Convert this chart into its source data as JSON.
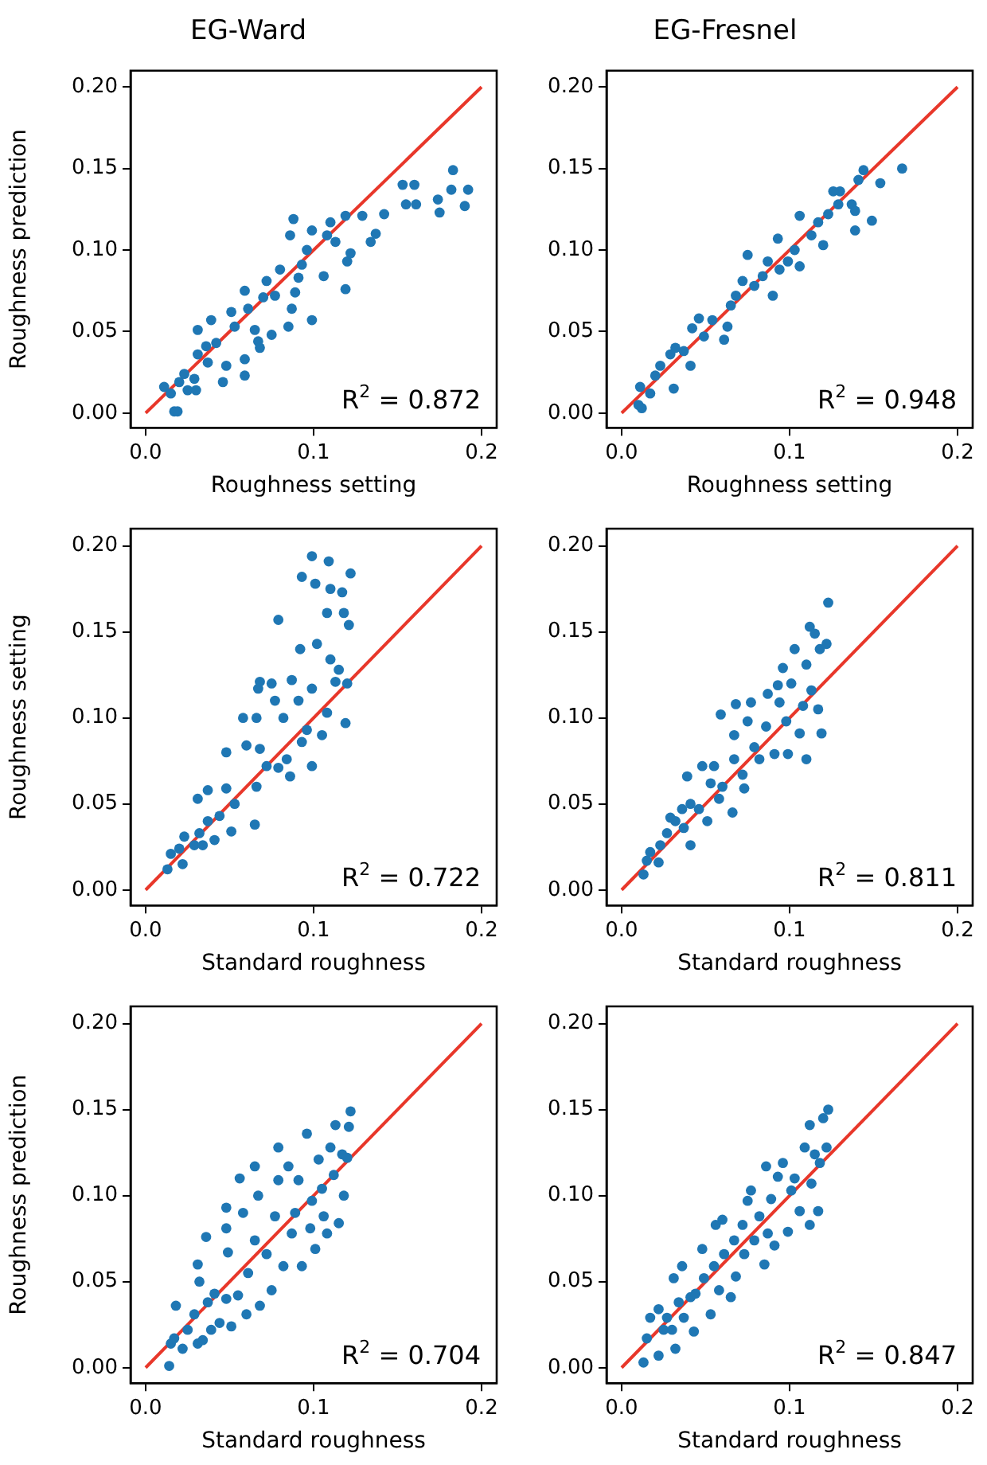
{
  "chart_data": [
    {
      "type": "scatter",
      "title": "EG-Ward",
      "xlabel": "Roughness setting",
      "ylabel": "Roughness prediction",
      "xlim": [
        -0.009,
        0.209
      ],
      "ylim": [
        -0.009,
        0.21
      ],
      "xticks": [
        {
          "value": 0,
          "label": "0.0"
        },
        {
          "value": 0.1,
          "label": "0.1"
        },
        {
          "value": 0.2,
          "label": "0.2"
        }
      ],
      "yticks": [
        {
          "value": 0,
          "label": "0.00"
        },
        {
          "value": 0.05,
          "label": "0.05"
        },
        {
          "value": 0.1,
          "label": "0.10"
        },
        {
          "value": 0.15,
          "label": "0.15"
        },
        {
          "value": 0.2,
          "label": "0.20"
        }
      ],
      "grid": false,
      "legend": false,
      "annotations": [
        "R$^{2}$ = 0.872"
      ],
      "series": [
        {
          "marker": "circle",
          "color": "#1f77b4",
          "x": [
            0.011,
            0.017,
            0.019,
            0.015,
            0.02,
            0.023,
            0.025,
            0.03,
            0.029,
            0.031,
            0.031,
            0.036,
            0.037,
            0.039,
            0.042,
            0.046,
            0.048,
            0.051,
            0.053,
            0.059,
            0.059,
            0.059,
            0.061,
            0.065,
            0.067,
            0.068,
            0.07,
            0.072,
            0.075,
            0.077,
            0.08,
            0.085,
            0.087,
            0.088,
            0.086,
            0.089,
            0.091,
            0.093,
            0.099,
            0.096,
            0.099,
            0.106,
            0.108,
            0.11,
            0.113,
            0.119,
            0.119,
            0.12,
            0.122,
            0.129,
            0.134,
            0.137,
            0.142,
            0.153,
            0.155,
            0.16,
            0.161,
            0.174,
            0.175,
            0.183,
            0.182,
            0.192,
            0.19
          ],
          "values": [
            0.016,
            0.001,
            0.001,
            0.012,
            0.019,
            0.024,
            0.014,
            0.014,
            0.021,
            0.036,
            0.051,
            0.041,
            0.031,
            0.057,
            0.043,
            0.019,
            0.029,
            0.062,
            0.053,
            0.023,
            0.033,
            0.075,
            0.064,
            0.051,
            0.044,
            0.04,
            0.071,
            0.081,
            0.048,
            0.072,
            0.088,
            0.053,
            0.064,
            0.119,
            0.109,
            0.074,
            0.083,
            0.091,
            0.057,
            0.1,
            0.112,
            0.084,
            0.109,
            0.117,
            0.105,
            0.076,
            0.121,
            0.093,
            0.098,
            0.121,
            0.105,
            0.11,
            0.122,
            0.14,
            0.128,
            0.14,
            0.128,
            0.131,
            0.123,
            0.149,
            0.137,
            0.137,
            0.127
          ]
        },
        {
          "type": "line",
          "color": "#e8372a",
          "x": [
            0,
            0.2
          ],
          "values": [
            0,
            0.2
          ]
        }
      ]
    },
    {
      "type": "scatter",
      "title": "EG-Fresnel",
      "xlabel": "Roughness setting",
      "xlim": [
        -0.009,
        0.209
      ],
      "ylim": [
        -0.009,
        0.21
      ],
      "xticks": [
        {
          "value": 0,
          "label": "0.0"
        },
        {
          "value": 0.1,
          "label": "0.1"
        },
        {
          "value": 0.2,
          "label": "0.2"
        }
      ],
      "yticks": [
        {
          "value": 0,
          "label": "0.00"
        },
        {
          "value": 0.05,
          "label": "0.05"
        },
        {
          "value": 0.1,
          "label": "0.10"
        },
        {
          "value": 0.15,
          "label": "0.15"
        },
        {
          "value": 0.2,
          "label": "0.20"
        }
      ],
      "grid": false,
      "legend": false,
      "annotations": [
        "R$^{2}$ = 0.948"
      ],
      "series": [
        {
          "marker": "circle",
          "color": "#1f77b4",
          "x": [
            0.01,
            0.012,
            0.011,
            0.017,
            0.02,
            0.023,
            0.031,
            0.029,
            0.032,
            0.037,
            0.041,
            0.042,
            0.046,
            0.049,
            0.054,
            0.061,
            0.063,
            0.065,
            0.068,
            0.072,
            0.075,
            0.079,
            0.084,
            0.087,
            0.09,
            0.093,
            0.094,
            0.099,
            0.103,
            0.106,
            0.106,
            0.113,
            0.117,
            0.12,
            0.123,
            0.129,
            0.13,
            0.126,
            0.139,
            0.137,
            0.139,
            0.141,
            0.144,
            0.149,
            0.154,
            0.167
          ],
          "values": [
            0.005,
            0.003,
            0.016,
            0.012,
            0.023,
            0.029,
            0.015,
            0.036,
            0.04,
            0.038,
            0.029,
            0.052,
            0.058,
            0.047,
            0.057,
            0.045,
            0.053,
            0.066,
            0.072,
            0.081,
            0.097,
            0.078,
            0.084,
            0.093,
            0.072,
            0.107,
            0.088,
            0.093,
            0.1,
            0.121,
            0.09,
            0.109,
            0.117,
            0.103,
            0.122,
            0.128,
            0.136,
            0.136,
            0.112,
            0.128,
            0.124,
            0.143,
            0.149,
            0.118,
            0.141,
            0.15
          ]
        },
        {
          "type": "line",
          "color": "#e8372a",
          "x": [
            0,
            0.2
          ],
          "values": [
            0,
            0.2
          ]
        }
      ]
    },
    {
      "type": "scatter",
      "xlabel": "Standard roughness",
      "ylabel": "Roughness setting",
      "xlim": [
        -0.009,
        0.209
      ],
      "ylim": [
        -0.009,
        0.21
      ],
      "xticks": [
        {
          "value": 0,
          "label": "0.0"
        },
        {
          "value": 0.1,
          "label": "0.1"
        },
        {
          "value": 0.2,
          "label": "0.2"
        }
      ],
      "yticks": [
        {
          "value": 0,
          "label": "0.00"
        },
        {
          "value": 0.05,
          "label": "0.05"
        },
        {
          "value": 0.1,
          "label": "0.10"
        },
        {
          "value": 0.15,
          "label": "0.15"
        },
        {
          "value": 0.2,
          "label": "0.20"
        }
      ],
      "grid": false,
      "legend": false,
      "annotations": [
        "R$^{2}$ = 0.722"
      ],
      "series": [
        {
          "marker": "circle",
          "color": "#1f77b4",
          "x": [
            0.013,
            0.015,
            0.02,
            0.022,
            0.023,
            0.029,
            0.032,
            0.034,
            0.037,
            0.037,
            0.031,
            0.041,
            0.044,
            0.048,
            0.048,
            0.051,
            0.053,
            0.058,
            0.06,
            0.065,
            0.066,
            0.067,
            0.068,
            0.066,
            0.068,
            0.072,
            0.075,
            0.077,
            0.079,
            0.079,
            0.082,
            0.084,
            0.086,
            0.087,
            0.091,
            0.092,
            0.093,
            0.093,
            0.096,
            0.099,
            0.099,
            0.101,
            0.102,
            0.105,
            0.108,
            0.109,
            0.108,
            0.11,
            0.11,
            0.113,
            0.115,
            0.117,
            0.118,
            0.119,
            0.12,
            0.122,
            0.121,
            0.099
          ],
          "values": [
            0.012,
            0.021,
            0.024,
            0.015,
            0.031,
            0.026,
            0.033,
            0.026,
            0.04,
            0.058,
            0.053,
            0.029,
            0.043,
            0.059,
            0.08,
            0.034,
            0.05,
            0.1,
            0.084,
            0.038,
            0.06,
            0.117,
            0.121,
            0.1,
            0.082,
            0.072,
            0.12,
            0.11,
            0.071,
            0.157,
            0.1,
            0.076,
            0.066,
            0.122,
            0.11,
            0.14,
            0.086,
            0.182,
            0.093,
            0.072,
            0.117,
            0.178,
            0.143,
            0.09,
            0.103,
            0.191,
            0.161,
            0.175,
            0.134,
            0.121,
            0.128,
            0.173,
            0.161,
            0.097,
            0.12,
            0.184,
            0.154,
            0.194
          ]
        },
        {
          "type": "line",
          "color": "#e8372a",
          "x": [
            0,
            0.2
          ],
          "values": [
            0,
            0.2
          ]
        }
      ]
    },
    {
      "type": "scatter",
      "xlabel": "Standard roughness",
      "xlim": [
        -0.009,
        0.209
      ],
      "ylim": [
        -0.009,
        0.21
      ],
      "xticks": [
        {
          "value": 0,
          "label": "0.0"
        },
        {
          "value": 0.1,
          "label": "0.1"
        },
        {
          "value": 0.2,
          "label": "0.2"
        }
      ],
      "yticks": [
        {
          "value": 0,
          "label": "0.00"
        },
        {
          "value": 0.05,
          "label": "0.05"
        },
        {
          "value": 0.1,
          "label": "0.10"
        },
        {
          "value": 0.15,
          "label": "0.15"
        },
        {
          "value": 0.2,
          "label": "0.20"
        }
      ],
      "grid": false,
      "legend": false,
      "annotations": [
        "R$^{2}$ = 0.811"
      ],
      "series": [
        {
          "marker": "circle",
          "color": "#1f77b4",
          "x": [
            0.013,
            0.015,
            0.017,
            0.022,
            0.023,
            0.027,
            0.029,
            0.032,
            0.036,
            0.037,
            0.041,
            0.041,
            0.039,
            0.046,
            0.048,
            0.051,
            0.053,
            0.055,
            0.058,
            0.059,
            0.06,
            0.066,
            0.067,
            0.067,
            0.068,
            0.072,
            0.073,
            0.075,
            0.077,
            0.079,
            0.082,
            0.086,
            0.087,
            0.091,
            0.093,
            0.094,
            0.096,
            0.098,
            0.099,
            0.101,
            0.103,
            0.106,
            0.108,
            0.11,
            0.11,
            0.112,
            0.113,
            0.115,
            0.117,
            0.118,
            0.119,
            0.122,
            0.123
          ],
          "values": [
            0.009,
            0.017,
            0.022,
            0.016,
            0.026,
            0.033,
            0.042,
            0.04,
            0.047,
            0.036,
            0.05,
            0.026,
            0.066,
            0.047,
            0.072,
            0.04,
            0.062,
            0.072,
            0.053,
            0.102,
            0.06,
            0.045,
            0.076,
            0.09,
            0.108,
            0.067,
            0.059,
            0.098,
            0.109,
            0.083,
            0.076,
            0.095,
            0.114,
            0.079,
            0.119,
            0.109,
            0.129,
            0.098,
            0.079,
            0.12,
            0.14,
            0.091,
            0.107,
            0.076,
            0.131,
            0.153,
            0.116,
            0.149,
            0.105,
            0.14,
            0.091,
            0.143,
            0.167
          ]
        },
        {
          "type": "line",
          "color": "#e8372a",
          "x": [
            0,
            0.2
          ],
          "values": [
            0,
            0.2
          ]
        }
      ]
    },
    {
      "type": "scatter",
      "xlabel": "Standard roughness",
      "ylabel": "Roughness prediction",
      "xlim": [
        -0.009,
        0.209
      ],
      "ylim": [
        -0.009,
        0.21
      ],
      "xticks": [
        {
          "value": 0,
          "label": "0.0"
        },
        {
          "value": 0.1,
          "label": "0.1"
        },
        {
          "value": 0.2,
          "label": "0.2"
        }
      ],
      "yticks": [
        {
          "value": 0,
          "label": "0.00"
        },
        {
          "value": 0.05,
          "label": "0.05"
        },
        {
          "value": 0.1,
          "label": "0.10"
        },
        {
          "value": 0.15,
          "label": "0.15"
        },
        {
          "value": 0.2,
          "label": "0.20"
        }
      ],
      "grid": false,
      "legend": false,
      "annotations": [
        "R$^{2}$ = 0.704"
      ],
      "series": [
        {
          "marker": "circle",
          "color": "#1f77b4",
          "x": [
            0.014,
            0.015,
            0.017,
            0.018,
            0.022,
            0.025,
            0.029,
            0.031,
            0.034,
            0.036,
            0.031,
            0.032,
            0.037,
            0.039,
            0.041,
            0.044,
            0.048,
            0.048,
            0.048,
            0.049,
            0.051,
            0.055,
            0.056,
            0.058,
            0.06,
            0.061,
            0.065,
            0.065,
            0.067,
            0.068,
            0.072,
            0.075,
            0.077,
            0.079,
            0.079,
            0.082,
            0.085,
            0.087,
            0.089,
            0.091,
            0.093,
            0.096,
            0.098,
            0.099,
            0.101,
            0.103,
            0.105,
            0.106,
            0.108,
            0.11,
            0.112,
            0.113,
            0.115,
            0.117,
            0.118,
            0.12,
            0.122,
            0.121
          ],
          "values": [
            0.001,
            0.014,
            0.017,
            0.036,
            0.011,
            0.022,
            0.031,
            0.014,
            0.016,
            0.076,
            0.06,
            0.05,
            0.038,
            0.022,
            0.043,
            0.026,
            0.04,
            0.093,
            0.081,
            0.067,
            0.024,
            0.042,
            0.11,
            0.09,
            0.031,
            0.055,
            0.117,
            0.074,
            0.1,
            0.036,
            0.066,
            0.045,
            0.088,
            0.109,
            0.128,
            0.059,
            0.117,
            0.078,
            0.09,
            0.109,
            0.059,
            0.136,
            0.081,
            0.097,
            0.069,
            0.121,
            0.104,
            0.088,
            0.078,
            0.128,
            0.112,
            0.141,
            0.084,
            0.124,
            0.1,
            0.122,
            0.149,
            0.14
          ]
        },
        {
          "type": "line",
          "color": "#e8372a",
          "x": [
            0,
            0.2
          ],
          "values": [
            0,
            0.2
          ]
        }
      ]
    },
    {
      "type": "scatter",
      "xlabel": "Standard roughness",
      "xlim": [
        -0.009,
        0.209
      ],
      "ylim": [
        -0.009,
        0.21
      ],
      "xticks": [
        {
          "value": 0,
          "label": "0.0"
        },
        {
          "value": 0.1,
          "label": "0.1"
        },
        {
          "value": 0.2,
          "label": "0.2"
        }
      ],
      "yticks": [
        {
          "value": 0,
          "label": "0.00"
        },
        {
          "value": 0.05,
          "label": "0.05"
        },
        {
          "value": 0.1,
          "label": "0.10"
        },
        {
          "value": 0.15,
          "label": "0.15"
        },
        {
          "value": 0.2,
          "label": "0.20"
        }
      ],
      "grid": false,
      "legend": false,
      "annotations": [
        "R$^{2}$ = 0.847"
      ],
      "series": [
        {
          "marker": "circle",
          "color": "#1f77b4",
          "x": [
            0.013,
            0.015,
            0.017,
            0.022,
            0.022,
            0.025,
            0.027,
            0.03,
            0.032,
            0.034,
            0.031,
            0.036,
            0.037,
            0.041,
            0.043,
            0.044,
            0.048,
            0.049,
            0.053,
            0.055,
            0.056,
            0.058,
            0.06,
            0.061,
            0.065,
            0.067,
            0.068,
            0.072,
            0.073,
            0.075,
            0.077,
            0.079,
            0.082,
            0.085,
            0.086,
            0.087,
            0.089,
            0.091,
            0.093,
            0.096,
            0.099,
            0.101,
            0.103,
            0.106,
            0.109,
            0.112,
            0.113,
            0.112,
            0.115,
            0.117,
            0.118,
            0.12,
            0.122,
            0.123
          ],
          "values": [
            0.003,
            0.017,
            0.029,
            0.007,
            0.034,
            0.022,
            0.029,
            0.022,
            0.011,
            0.038,
            0.052,
            0.059,
            0.029,
            0.041,
            0.021,
            0.043,
            0.069,
            0.052,
            0.031,
            0.059,
            0.083,
            0.045,
            0.086,
            0.066,
            0.041,
            0.074,
            0.053,
            0.083,
            0.066,
            0.097,
            0.103,
            0.074,
            0.088,
            0.06,
            0.117,
            0.078,
            0.098,
            0.071,
            0.111,
            0.119,
            0.079,
            0.103,
            0.11,
            0.091,
            0.128,
            0.083,
            0.107,
            0.141,
            0.124,
            0.091,
            0.119,
            0.145,
            0.128,
            0.15
          ]
        },
        {
          "type": "line",
          "color": "#e8372a",
          "x": [
            0,
            0.2
          ],
          "values": [
            0,
            0.2
          ]
        }
      ]
    }
  ]
}
